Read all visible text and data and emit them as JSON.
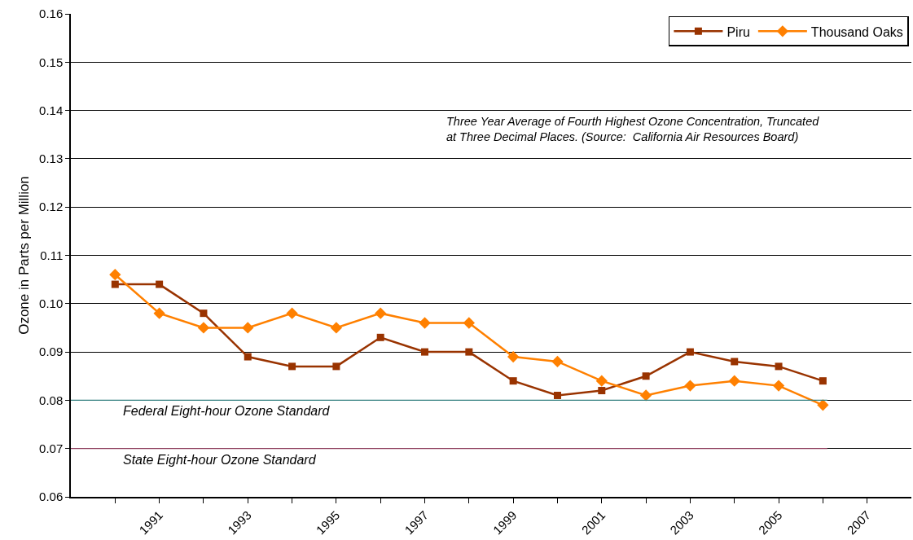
{
  "chart_data": {
    "type": "line",
    "ylabel": "Ozone in Parts per Million",
    "x": [
      1990,
      1991,
      1992,
      1993,
      1994,
      1995,
      1996,
      1997,
      1998,
      1999,
      2000,
      2001,
      2002,
      2003,
      2004,
      2005,
      2006
    ],
    "series": [
      {
        "name": "Piru",
        "color": "#993300",
        "marker": "square",
        "values": [
          0.104,
          0.104,
          0.098,
          0.089,
          0.087,
          0.087,
          0.093,
          0.09,
          0.09,
          0.084,
          0.081,
          0.082,
          0.085,
          0.09,
          0.088,
          0.087,
          0.084
        ]
      },
      {
        "name": "Thousand Oaks",
        "color": "#ff8000",
        "marker": "diamond",
        "values": [
          0.106,
          0.098,
          0.095,
          0.095,
          0.098,
          0.095,
          0.098,
          0.096,
          0.096,
          0.089,
          0.088,
          0.084,
          0.081,
          0.083,
          0.084,
          0.083,
          0.079
        ]
      }
    ],
    "xlim": [
      1989,
      2008
    ],
    "xticks": [
      {
        "value": 1990,
        "label": null
      },
      1991,
      {
        "value": 1992,
        "label": null
      },
      1993,
      {
        "value": 1994,
        "label": null
      },
      1995,
      {
        "value": 1996,
        "label": null
      },
      1997,
      {
        "value": 1998,
        "label": null
      },
      1999,
      {
        "value": 2000,
        "label": null
      },
      2001,
      {
        "value": 2002,
        "label": null
      },
      2003,
      {
        "value": 2004,
        "label": null
      },
      2005,
      {
        "value": 2006,
        "label": null
      },
      2007
    ],
    "ylim": [
      0.06,
      0.16
    ],
    "yticks": [
      {
        "value": 0.06,
        "label": "0.06"
      },
      {
        "value": 0.07,
        "label": "0.07"
      },
      {
        "value": 0.08,
        "label": "0.08"
      },
      {
        "value": 0.09,
        "label": "0.09"
      },
      {
        "value": 0.1,
        "label": "0.10"
      },
      {
        "value": 0.11,
        "label": "0.11"
      },
      {
        "value": 0.12,
        "label": "0.12"
      },
      {
        "value": 0.13,
        "label": "0.13"
      },
      {
        "value": 0.14,
        "label": "0.14"
      },
      {
        "value": 0.15,
        "label": "0.15"
      },
      {
        "value": 0.16,
        "label": "0.16"
      }
    ],
    "ref_lines": [
      {
        "axis": "y",
        "value": 0.08,
        "label": "Federal Eight-hour Ozone Standard",
        "color": "#2e7d7d"
      },
      {
        "axis": "y",
        "value": 0.07,
        "label": "State Eight-hour Ozone Standard",
        "color": "#8b3a5a"
      }
    ],
    "annotations": [
      "Three Year Average of Fourth Highest Ozone Concentration, Truncated\nat Three Decimal Places. (Source:  California Air Resources Board)"
    ],
    "grid": "y",
    "legend": "top right",
    "line_style": "solid"
  }
}
